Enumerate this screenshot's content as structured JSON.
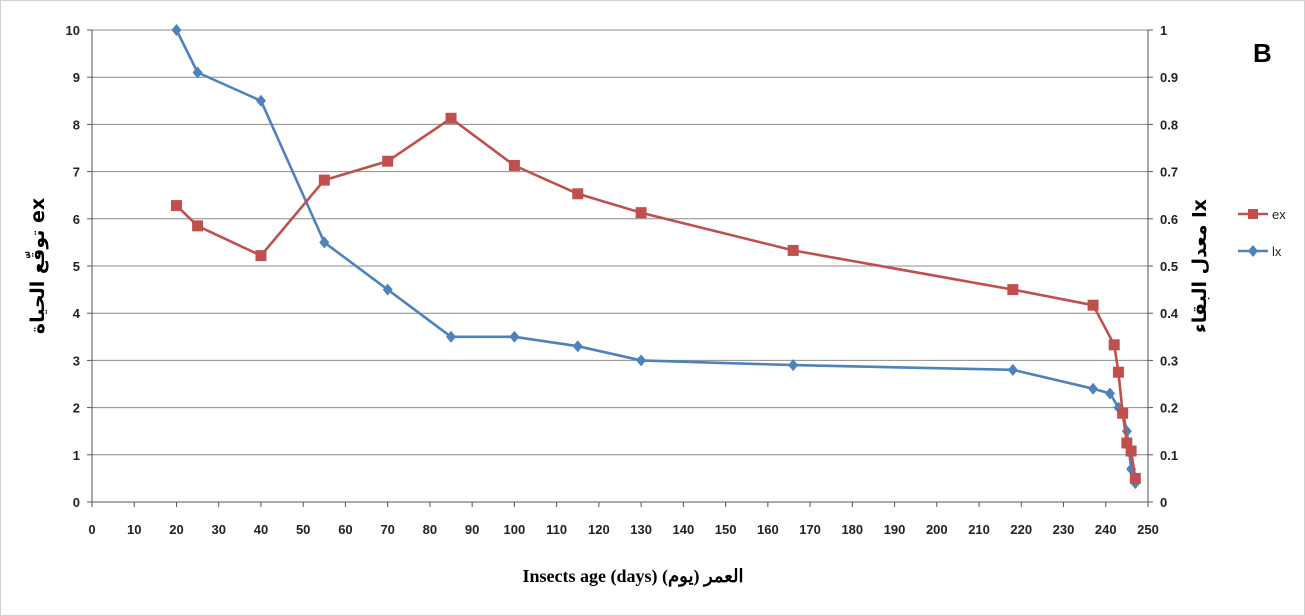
{
  "chart_data": {
    "type": "line",
    "panel_label": "B",
    "xlabel": "Insects age (days)  (يوم) العمر",
    "ylabel_left": "توقّع الحياة ex",
    "ylabel_right": "معدل البقاء lx",
    "xlim": [
      0,
      250
    ],
    "ylim_left": [
      0,
      10
    ],
    "ylim_right": [
      0,
      1
    ],
    "x_ticks": [
      0,
      10,
      20,
      30,
      40,
      50,
      60,
      70,
      80,
      90,
      100,
      110,
      120,
      130,
      140,
      150,
      160,
      170,
      180,
      190,
      200,
      210,
      220,
      230,
      240,
      250
    ],
    "y_left_ticks": [
      0,
      1,
      2,
      3,
      4,
      5,
      6,
      7,
      8,
      9,
      10
    ],
    "y_right_ticks": [
      "0",
      "0.1",
      "0.2",
      "0.3",
      "0.4",
      "0.5",
      "0.6",
      "0.7",
      "0.8",
      "0.9",
      "1"
    ],
    "grid": "horizontal",
    "legend_position": "right",
    "series": [
      {
        "name": "ex",
        "axis": "left",
        "color": "#C0504D",
        "marker": "square",
        "x": [
          20,
          25,
          40,
          55,
          70,
          85,
          100,
          115,
          130,
          166,
          218,
          237,
          242,
          243,
          244,
          245,
          246,
          247
        ],
        "y": [
          6.28,
          5.85,
          5.22,
          6.82,
          7.22,
          8.13,
          7.13,
          6.53,
          6.13,
          5.33,
          4.5,
          4.17,
          3.33,
          2.75,
          1.88,
          1.25,
          1.08,
          0.5
        ]
      },
      {
        "name": "lx",
        "axis": "right",
        "color": "#4F81BD",
        "marker": "diamond",
        "x": [
          20,
          25,
          40,
          55,
          70,
          85,
          100,
          115,
          130,
          166,
          218,
          237,
          241,
          243,
          244,
          245,
          246,
          247
        ],
        "y": [
          1.0,
          0.91,
          0.85,
          0.55,
          0.45,
          0.35,
          0.35,
          0.33,
          0.3,
          0.29,
          0.28,
          0.24,
          0.23,
          0.2,
          0.19,
          0.15,
          0.07,
          0.04
        ]
      }
    ]
  }
}
